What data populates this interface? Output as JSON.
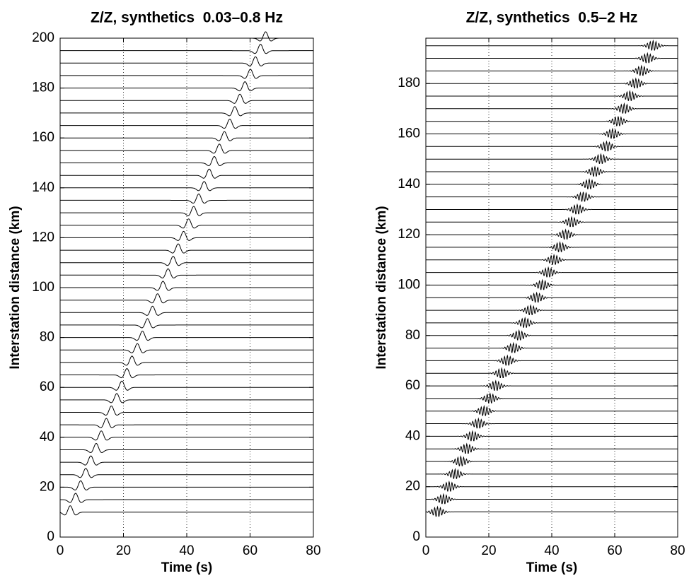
{
  "chart_data": [
    {
      "type": "wiggle",
      "title": "Z/Z, synthetics  0.03–0.8 Hz",
      "xlabel": "Time (s)",
      "ylabel": "Interstation distance (km)",
      "xlim": [
        0,
        80
      ],
      "ylim": [
        0,
        200
      ],
      "xticks": [
        0,
        20,
        40,
        60,
        80
      ],
      "yticks": [
        0,
        20,
        40,
        60,
        80,
        100,
        120,
        140,
        160,
        180,
        200
      ],
      "x_grid": true,
      "color": "#000000",
      "y": [
        10,
        15,
        20,
        25,
        30,
        35,
        40,
        45,
        50,
        55,
        60,
        65,
        70,
        75,
        80,
        85,
        90,
        95,
        100,
        105,
        110,
        115,
        120,
        125,
        130,
        135,
        140,
        145,
        150,
        155,
        160,
        165,
        170,
        175,
        180,
        185,
        190,
        195,
        200
      ],
      "x": [
        3.2,
        4.9,
        6.5,
        8.1,
        9.7,
        11.4,
        13.0,
        14.6,
        16.2,
        17.9,
        19.5,
        21.1,
        22.7,
        24.4,
        26.0,
        27.6,
        29.2,
        30.8,
        32.5,
        34.1,
        35.7,
        37.3,
        39.0,
        40.6,
        42.2,
        43.8,
        45.5,
        47.1,
        48.7,
        50.3,
        51.9,
        53.6,
        55.2,
        56.8,
        58.4,
        60.1,
        61.7,
        63.3,
        64.9
      ]
    },
    {
      "type": "wiggle",
      "title": "Z/Z, synthetics  0.5–2 Hz",
      "xlabel": "Time (s)",
      "ylabel": "Interstation distance (km)",
      "xlim": [
        0,
        80
      ],
      "ylim": [
        0,
        198
      ],
      "xticks": [
        0,
        20,
        40,
        60,
        80
      ],
      "yticks": [
        0,
        20,
        40,
        60,
        80,
        100,
        120,
        140,
        160,
        180
      ],
      "x_grid": true,
      "color": "#000000",
      "y": [
        10,
        15,
        20,
        25,
        30,
        35,
        40,
        45,
        50,
        55,
        60,
        65,
        70,
        75,
        80,
        85,
        90,
        95,
        100,
        105,
        110,
        115,
        120,
        125,
        130,
        135,
        140,
        145,
        150,
        155,
        160,
        165,
        170,
        175,
        180,
        185,
        190,
        195
      ],
      "x": [
        3.7,
        5.6,
        7.4,
        9.3,
        11.1,
        13.0,
        14.8,
        16.7,
        18.5,
        20.4,
        22.2,
        24.1,
        25.9,
        27.8,
        29.6,
        31.5,
        33.3,
        35.2,
        37.0,
        38.9,
        40.7,
        42.6,
        44.4,
        46.3,
        48.1,
        50.0,
        51.9,
        53.7,
        55.6,
        57.4,
        59.3,
        61.1,
        63.0,
        64.8,
        66.7,
        68.5,
        70.4,
        72.2
      ]
    }
  ]
}
